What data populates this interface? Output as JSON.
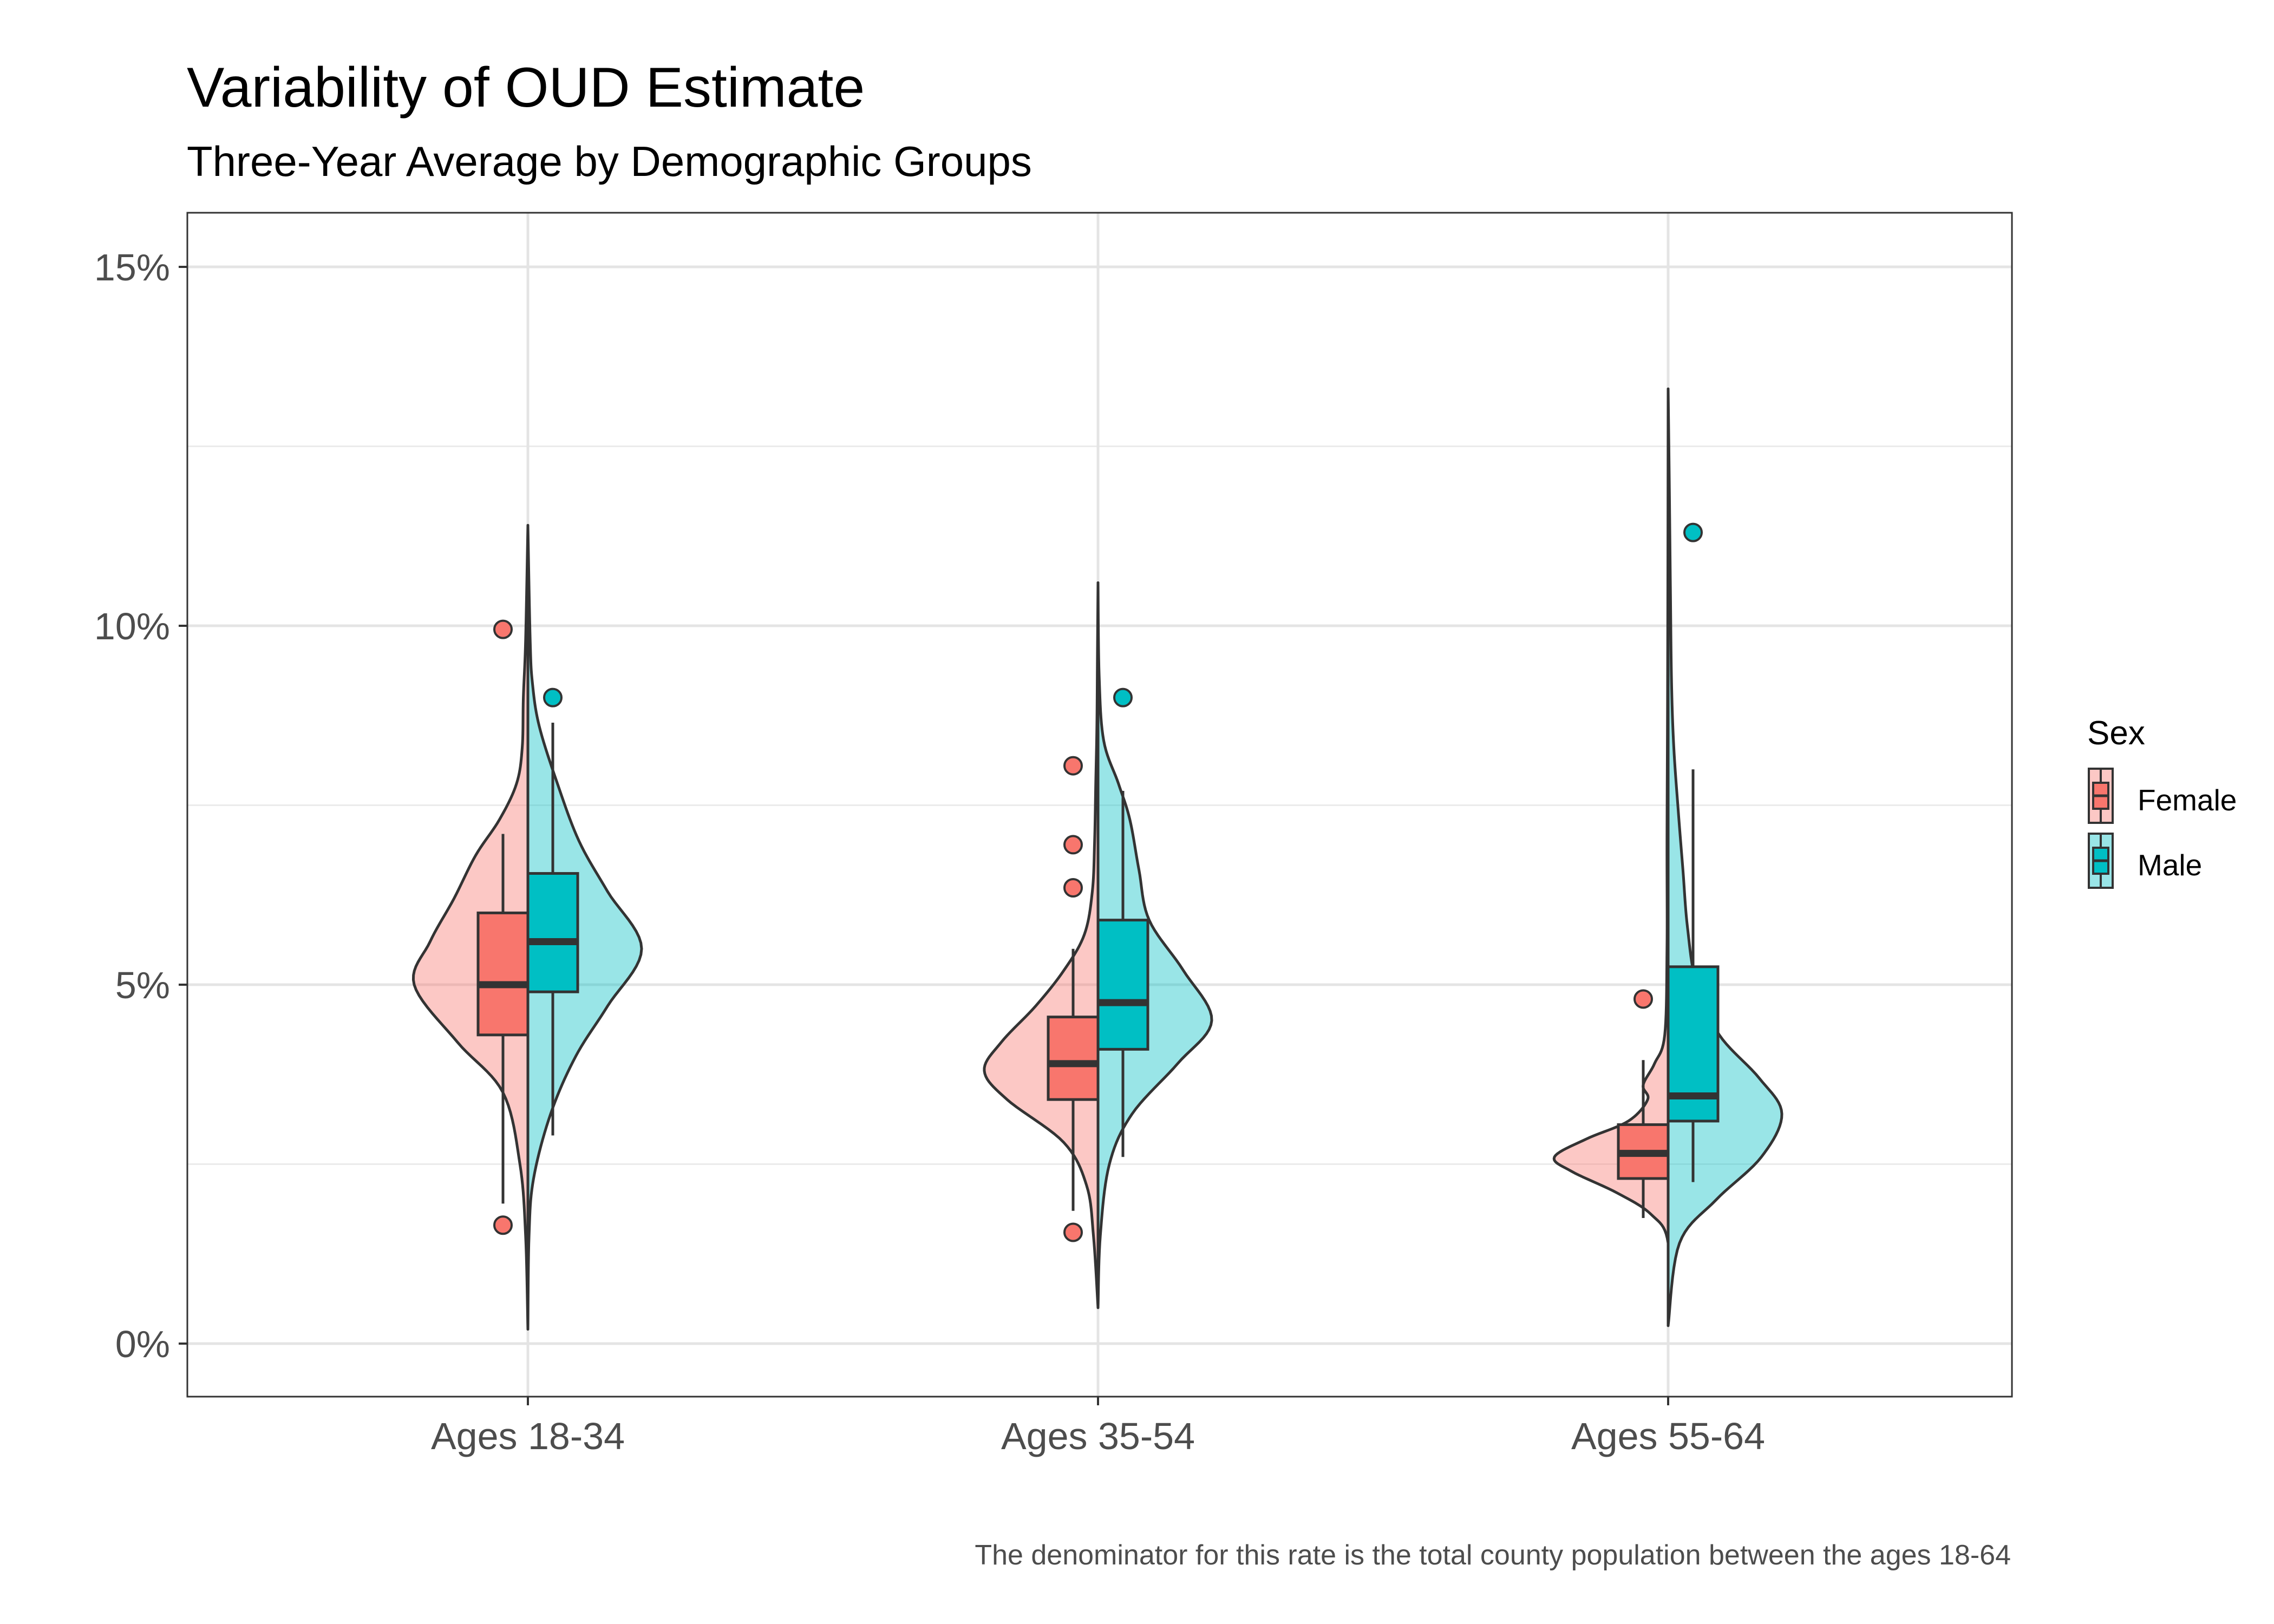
{
  "chart_data": {
    "type": "split-violin with boxplot",
    "title": "Variability of OUD Estimate",
    "subtitle": "Three-Year Average by Demographic Groups",
    "caption": "The denominator for this rate is the total county population between the ages 18-64",
    "xlabel": "",
    "ylabel": "",
    "ylim": [
      -0.7,
      15.7
    ],
    "yticks": [
      0,
      5,
      10,
      15
    ],
    "ytick_labels": [
      "0%",
      "5%",
      "10%",
      "15%"
    ],
    "grid": true,
    "legend": {
      "title": "Sex",
      "position": "right",
      "entries": [
        "Female",
        "Male"
      ]
    },
    "colors": {
      "Female": "#F8766D",
      "Male": "#00BFC4",
      "outline": "#333333"
    },
    "categories": [
      "Ages 18-34",
      "Ages 35-54",
      "Ages 55-64"
    ],
    "series": [
      {
        "name": "Female",
        "groups": [
          {
            "category": "Ages 18-34",
            "box": {
              "q1": 4.3,
              "median": 5.0,
              "q3": 6.0,
              "whisker_low": 1.95,
              "whisker_high": 7.1
            },
            "outliers": [
              9.95,
              1.65
            ],
            "violin": {
              "y": [
                0.2,
                1.5,
                2.5,
                3.5,
                4.2,
                5.0,
                5.6,
                6.2,
                6.8,
                7.3,
                7.8,
                8.3,
                9.0,
                9.8,
                11.4
              ],
              "density": [
                0.0,
                0.02,
                0.07,
                0.22,
                0.62,
                1.0,
                0.86,
                0.65,
                0.46,
                0.25,
                0.1,
                0.05,
                0.04,
                0.02,
                0.0
              ]
            }
          },
          {
            "category": "Ages 35-54",
            "box": {
              "q1": 3.4,
              "median": 3.9,
              "q3": 4.55,
              "whisker_low": 1.85,
              "whisker_high": 5.5
            },
            "outliers": [
              8.05,
              6.95,
              6.35,
              1.55
            ],
            "violin": {
              "y": [
                0.5,
                1.5,
                2.2,
                2.8,
                3.4,
                3.8,
                4.2,
                4.7,
                5.2,
                5.7,
                6.3,
                7.0,
                7.8,
                8.6,
                9.6,
                10.6
              ],
              "density": [
                0.0,
                0.04,
                0.1,
                0.3,
                0.8,
                1.0,
                0.85,
                0.55,
                0.3,
                0.12,
                0.05,
                0.03,
                0.02,
                0.01,
                0.005,
                0.0
              ]
            }
          },
          {
            "category": "Ages 55-64",
            "box": {
              "q1": 2.3,
              "median": 2.65,
              "q3": 3.05,
              "whisker_low": 1.75,
              "whisker_high": 3.95
            },
            "outliers": [
              4.8
            ],
            "violin": {
              "y": [
                0.25,
                1.4,
                1.8,
                2.1,
                2.4,
                2.6,
                2.85,
                3.1,
                3.4,
                3.6,
                3.9,
                4.3,
                5.5,
                7.0,
                9.0,
                11.0,
                13.3
              ],
              "density": [
                0.0,
                0.0,
                0.15,
                0.45,
                0.85,
                1.0,
                0.72,
                0.35,
                0.18,
                0.22,
                0.12,
                0.03,
                0.01,
                0.01,
                0.005,
                0.002,
                0.0
              ]
            }
          }
        ]
      },
      {
        "name": "Male",
        "groups": [
          {
            "category": "Ages 18-34",
            "box": {
              "q1": 4.9,
              "median": 5.6,
              "q3": 6.55,
              "whisker_low": 2.9,
              "whisker_high": 8.65
            },
            "outliers": [
              9.0
            ],
            "violin": {
              "y": [
                0.2,
                1.5,
                2.3,
                3.2,
                4.0,
                4.7,
                5.5,
                6.3,
                7.0,
                7.8,
                8.6,
                9.2,
                9.8,
                11.4
              ],
              "density": [
                0.0,
                0.01,
                0.05,
                0.2,
                0.42,
                0.7,
                1.0,
                0.7,
                0.45,
                0.26,
                0.1,
                0.04,
                0.02,
                0.0
              ]
            }
          },
          {
            "category": "Ages 35-54",
            "box": {
              "q1": 4.1,
              "median": 4.75,
              "q3": 5.9,
              "whisker_low": 2.6,
              "whisker_high": 7.7
            },
            "outliers": [
              9.0
            ],
            "violin": {
              "y": [
                0.5,
                1.5,
                2.5,
                3.2,
                3.9,
                4.5,
                5.2,
                5.9,
                6.6,
                7.3,
                7.8,
                8.4,
                9.3,
                10.6
              ],
              "density": [
                0.0,
                0.02,
                0.1,
                0.3,
                0.7,
                1.0,
                0.75,
                0.45,
                0.36,
                0.28,
                0.18,
                0.05,
                0.01,
                0.0
              ]
            }
          },
          {
            "category": "Ages 55-64",
            "box": {
              "q1": 3.1,
              "median": 3.45,
              "q3": 5.25,
              "whisker_low": 2.25,
              "whisker_high": 8.0
            },
            "outliers": [
              11.3
            ],
            "violin": {
              "y": [
                0.25,
                1.4,
                2.0,
                2.6,
                3.2,
                3.7,
                4.3,
                5.0,
                5.8,
                6.6,
                7.4,
                8.3,
                9.2,
                10.5,
                12.0,
                13.3
              ],
              "density": [
                0.0,
                0.1,
                0.42,
                0.82,
                1.0,
                0.8,
                0.45,
                0.25,
                0.17,
                0.13,
                0.09,
                0.05,
                0.03,
                0.02,
                0.01,
                0.0
              ]
            }
          }
        ]
      }
    ]
  }
}
